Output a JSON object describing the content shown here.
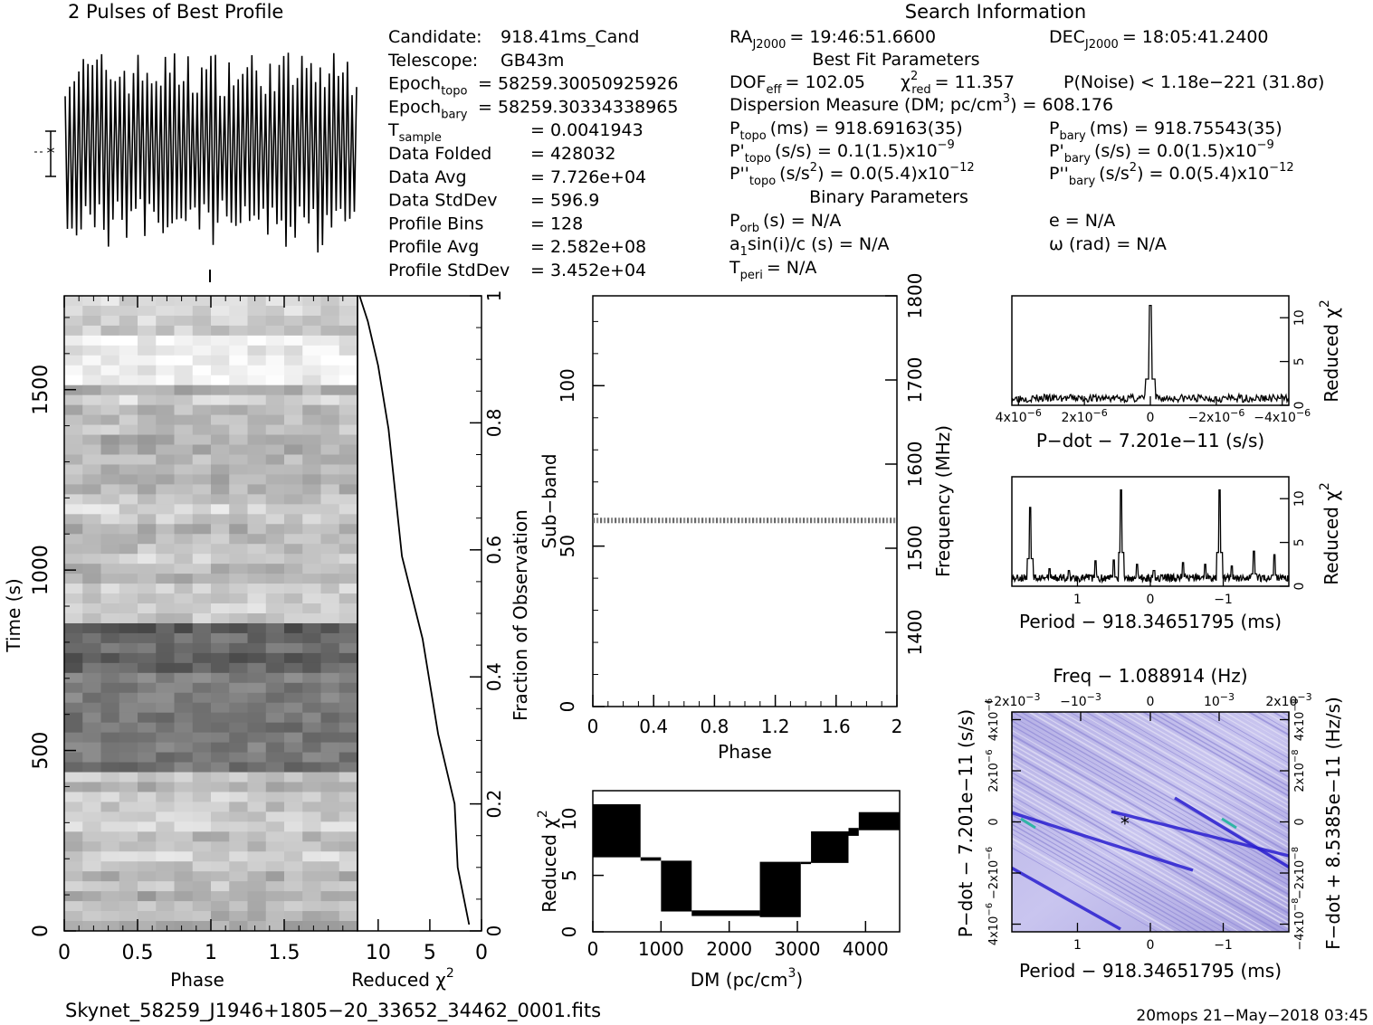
{
  "figure": {
    "profile_title": "2 Pulses of Best Profile",
    "search_title": "Search Information",
    "filename": "Skynet_58259_J1946+1805−20_33652_34462_0001.fits",
    "footer_right": "20mops 21−May−2018 03:45"
  },
  "info_left": [
    {
      "label": "Candidate:",
      "value": "918.41ms_Cand"
    },
    {
      "label": "Telescope:",
      "value": "GB43m"
    },
    {
      "label": "Epoch",
      "sub": "topo",
      "value": "= 58259.30050925926"
    },
    {
      "label": "Epoch",
      "sub": "bary",
      "value": "= 58259.30334338965"
    },
    {
      "label": "T",
      "sub": "sample",
      "value": "=   0.0041943"
    },
    {
      "label": "Data Folded",
      "value": "=   428032"
    },
    {
      "label": "Data Avg",
      "value": "=   7.726e+04"
    },
    {
      "label": "Data StdDev",
      "value": "=   596.9"
    },
    {
      "label": "Profile Bins",
      "value": "=   128"
    },
    {
      "label": "Profile Avg",
      "value": "=   2.582e+08"
    },
    {
      "label": "Profile StdDev",
      "value": "=   3.452e+04"
    }
  ],
  "info_mid": {
    "ra": {
      "label": "RA",
      "sub": "J2000",
      "value": "= 19:46:51.6600"
    },
    "dec": {
      "label": "DEC",
      "sub": "J2000",
      "value": "= 18:05:41.2400"
    },
    "best_fit_title": "Best Fit Parameters",
    "dof": {
      "label": "DOF",
      "sub": "eff",
      "value": "= 102.05"
    },
    "chi2": {
      "label": "χ",
      "sup": "2",
      "sub": "red",
      "value": "= 11.357"
    },
    "pnoise": "P(Noise) < 1.18e−221   (31.8σ)",
    "dm_line": {
      "text": "Dispersion Measure (DM; pc/cm",
      "sup": "3",
      "value": ") = 608.176"
    },
    "ptopo": {
      "label": "P",
      "sub": "topo",
      "value": "(ms) =   918.69163(35)"
    },
    "pbary": {
      "label": "P",
      "sub": "bary",
      "value": "(ms) =   918.75543(35)"
    },
    "pdtopo": {
      "label": "P'",
      "sub": "topo",
      "value": "(s/s) =  0.1(1.5)x10",
      "sup": "−9"
    },
    "pdbary": {
      "label": "P'",
      "sub": "bary",
      "value": "(s/s) = 0.0(1.5)x10",
      "sup": "−9"
    },
    "pddtopo": {
      "label": "P''",
      "sub": "topo",
      "value": "(s/s",
      "mid": ") = 0.0(5.4)x10",
      "sup": "−12"
    },
    "pddbary": {
      "label": "P''",
      "sub": "bary",
      "value": "(s/s",
      "mid": ") = 0.0(5.4)x10",
      "sup": "−12"
    },
    "binary_title": "Binary Parameters",
    "porb": {
      "label": "P",
      "sub": "orb",
      "value": "(s) = N/A"
    },
    "e": "e = N/A",
    "a1": {
      "label": "a",
      "sub": "1",
      "value": "sin(i)/c (s) = N/A"
    },
    "omega": "ω (rad) = N/A",
    "tperi": {
      "label": "T",
      "sub": "peri",
      "value": "= N/A"
    }
  },
  "axes": {
    "time_xlabel": "Phase",
    "time_ylabel": "Time (s)",
    "time_xticks": [
      "0",
      "0.5",
      "1",
      "1.5"
    ],
    "time_yticks": [
      "0",
      "500",
      "1000",
      "1500"
    ],
    "chi_xlabel": "Reduced χ",
    "chi_xlabel_sup": "2",
    "chi_xticks": [
      "10",
      "5",
      "0"
    ],
    "frac_label": "Fraction of Observation",
    "frac_ticks": [
      "0",
      "0.2",
      "0.4",
      "0.6",
      "0.8",
      "1"
    ],
    "sub_xlabel": "Phase",
    "sub_ylabel": "Sub−band",
    "sub_xticks": [
      "0",
      "0.4",
      "0.8",
      "1.2",
      "1.6",
      "2"
    ],
    "sub_yticks": [
      "0",
      "50",
      "100"
    ],
    "freq_label": "Frequency (MHz)",
    "freq_ticks": [
      "1400",
      "1500",
      "1600",
      "1700",
      "1800"
    ],
    "dm_xlabel": "DM (pc/cm",
    "dm_xlabel_sup": "3",
    "dm_xlabel_end": ")",
    "dm_ylabel": "Reduced χ",
    "dm_ylabel_sup": "2",
    "dm_xticks": [
      "0",
      "1000",
      "2000",
      "3000",
      "4000"
    ],
    "dm_yticks": [
      "0",
      "5",
      "10"
    ],
    "pd_xlabel": "P−dot − 7.201e−11 (s/s)",
    "pd_ylabel": "Reduced χ",
    "pd_ylabel_sup": "2",
    "pd_yticks": [
      "0",
      "5",
      "10"
    ],
    "pd_xticks": [
      {
        "m": "4x10",
        "e": "−6"
      },
      {
        "m": "2x10",
        "e": "−6"
      },
      {
        "m": "0",
        "e": ""
      },
      {
        "m": "−2x10",
        "e": "−6"
      },
      {
        "m": "−4x10",
        "e": "−6"
      }
    ],
    "per_xlabel": "Period − 918.34651795 (ms)",
    "per_ylabel": "Reduced χ",
    "per_ylabel_sup": "2",
    "per_xticks": [
      "1",
      "0",
      "−1"
    ],
    "per_yticks": [
      "0",
      "5",
      "10"
    ],
    "ppd_title": "Freq − 1.088914 (Hz)",
    "ppd_xlabel": "Period − 918.34651795 (ms)",
    "ppd_ylabel": "P−dot − 7.201e−11 (s/s)",
    "ppd_rlabel": "F−dot + 8.5385e−11 (Hz/s)",
    "ppd_xticks": [
      "1",
      "0",
      "−1"
    ],
    "ppd_topticks": [
      {
        "m": "−2x10",
        "e": "−3"
      },
      {
        "m": "−10",
        "e": "−3"
      },
      {
        "m": "0",
        "e": ""
      },
      {
        "m": "10",
        "e": "−3"
      },
      {
        "m": "2x10",
        "e": "−3"
      }
    ],
    "ppd_yticks": [
      {
        "m": "4x10",
        "e": "−6"
      },
      {
        "m": "2x10",
        "e": "−6"
      },
      {
        "m": "0",
        "e": ""
      },
      {
        "m": "−2x10",
        "e": "−6"
      },
      {
        "m": "4x10",
        "e": "−6"
      }
    ],
    "ppd_rticks": [
      {
        "m": "−4x10",
        "e": "−8"
      },
      {
        "m": "−2x10",
        "e": "−8"
      },
      {
        "m": "0",
        "e": ""
      },
      {
        "m": "2x10",
        "e": "−8"
      },
      {
        "m": "4x10",
        "e": "−8"
      }
    ]
  },
  "chart_data": [
    {
      "type": "line",
      "name": "profile",
      "title": "2 Pulses of Best Profile",
      "note": "oscillating profile over 2 pulses",
      "cycles": 64
    },
    {
      "type": "heatmap",
      "name": "time_vs_phase",
      "xlabel": "Phase",
      "ylabel": "Time (s)",
      "xlim": [
        0,
        2
      ],
      "ylim": [
        0,
        1760
      ]
    },
    {
      "type": "line",
      "name": "chi2_vs_time",
      "xlabel": "Reduced χ2",
      "xlim": [
        12,
        0
      ],
      "x": [
        11.8,
        11.0,
        10.0,
        9.0,
        7.7,
        5.7,
        4.2,
        2.6,
        2.3,
        1.2
      ],
      "fraction": [
        1.0,
        0.96,
        0.89,
        0.79,
        0.59,
        0.46,
        0.31,
        0.2,
        0.1,
        0.01
      ]
    },
    {
      "type": "heatmap",
      "name": "subband_vs_phase",
      "xlabel": "Phase",
      "ylabel": "Sub−band",
      "xlim": [
        0,
        2
      ],
      "ylim": [
        0,
        128
      ],
      "bright_subband": 58
    },
    {
      "type": "line",
      "name": "chi2_vs_dm",
      "xlabel": "DM (pc/cm3)",
      "ylabel": "Reduced χ2",
      "xlim": [
        0,
        4500
      ],
      "ylim": [
        0,
        12.5
      ],
      "steps": [
        {
          "x0": 0,
          "x1": 700,
          "lo": 6.6,
          "hi": 11.3
        },
        {
          "x0": 700,
          "x1": 1000,
          "lo": 6.3,
          "hi": 6.6
        },
        {
          "x0": 1000,
          "x1": 1450,
          "lo": 1.8,
          "hi": 6.3
        },
        {
          "x0": 1450,
          "x1": 2450,
          "lo": 1.4,
          "hi": 1.9
        },
        {
          "x0": 2450,
          "x1": 3050,
          "lo": 1.3,
          "hi": 6.2
        },
        {
          "x0": 3050,
          "x1": 3200,
          "lo": 6.0,
          "hi": 6.2
        },
        {
          "x0": 3200,
          "x1": 3750,
          "lo": 6.1,
          "hi": 8.9
        },
        {
          "x0": 3750,
          "x1": 3900,
          "lo": 8.5,
          "hi": 9.2
        },
        {
          "x0": 3900,
          "x1": 4500,
          "lo": 9.0,
          "hi": 10.6
        }
      ]
    },
    {
      "type": "line",
      "name": "chi2_vs_pdot",
      "xlabel": "P−dot − 7.201e−11 (s/s)",
      "ylabel": "Reduced χ2",
      "xlim": [
        4.2e-06,
        -4.2e-06
      ],
      "ylim": [
        0,
        12.5
      ],
      "peak": {
        "x": 0,
        "y": 11.4
      },
      "baseline": 0.8
    },
    {
      "type": "line",
      "name": "chi2_vs_period",
      "xlabel": "Period − 918.34651795 (ms)",
      "ylabel": "Reduced χ2",
      "xlim": [
        1.9,
        -1.9
      ],
      "ylim": [
        0,
        12.5
      ],
      "peaks": [
        {
          "x": 1.65,
          "y": 9.0
        },
        {
          "x": 1.38,
          "y": 2.0
        },
        {
          "x": 1.12,
          "y": 1.8
        },
        {
          "x": 0.75,
          "y": 2.9
        },
        {
          "x": 0.5,
          "y": 3.0
        },
        {
          "x": 0.4,
          "y": 11.0
        },
        {
          "x": 0.18,
          "y": 2.5
        },
        {
          "x": -0.05,
          "y": 1.8
        },
        {
          "x": -0.45,
          "y": 2.7
        },
        {
          "x": -0.75,
          "y": 2.5
        },
        {
          "x": -0.95,
          "y": 11.0
        },
        {
          "x": -1.12,
          "y": 2.3
        },
        {
          "x": -1.42,
          "y": 4.0
        },
        {
          "x": -1.7,
          "y": 3.6
        }
      ],
      "baseline": 0.5
    },
    {
      "type": "heatmap",
      "name": "period_pdot_plane",
      "xlabel": "Period − 918.34651795 (ms)",
      "ylabel": "P−dot − 7.201e−11 (s/s)",
      "title": "Freq − 1.088914 (Hz)",
      "xlim": [
        1.9,
        -1.9
      ],
      "ylim": [
        -4.3e-06,
        4.3e-06
      ],
      "best": {
        "x": 0.35,
        "y": 0
      }
    }
  ]
}
